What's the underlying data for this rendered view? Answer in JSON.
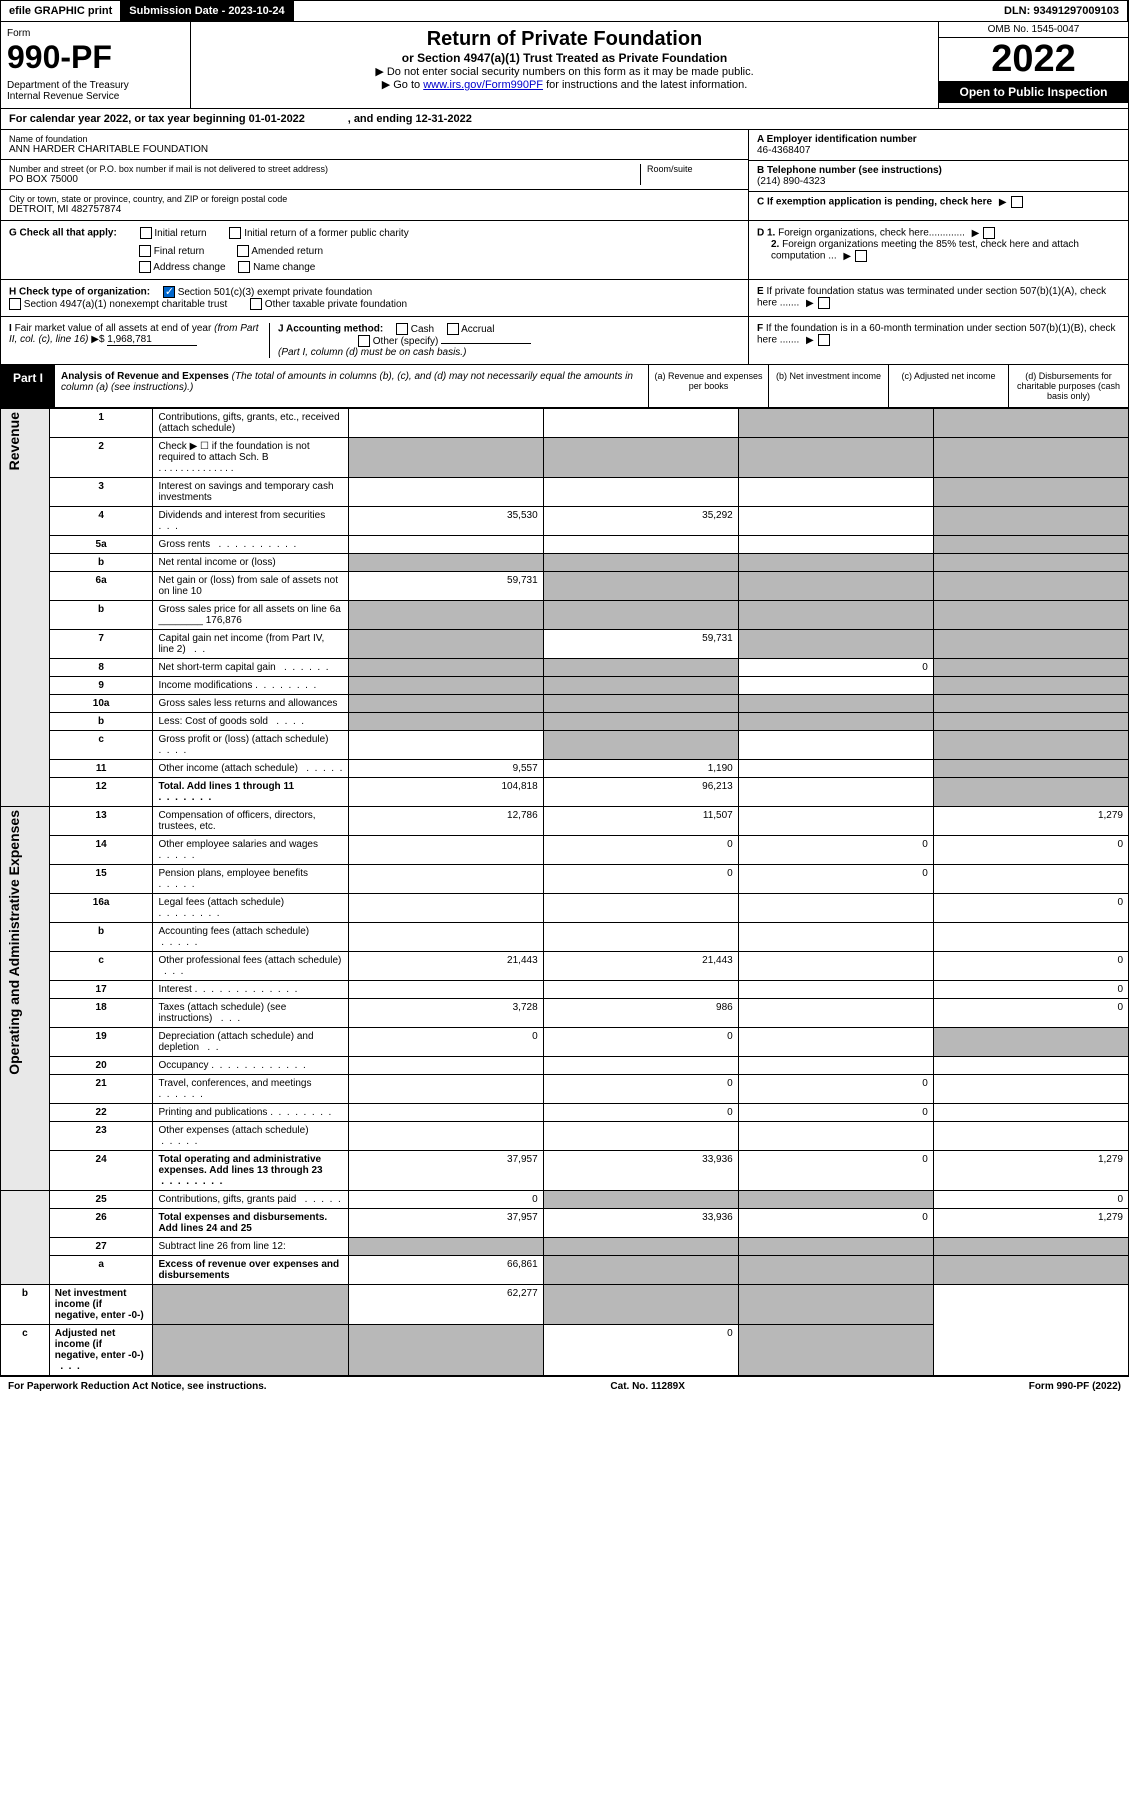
{
  "topbar": {
    "efile": "efile GRAPHIC print",
    "subdate_label": "Submission Date - 2023-10-24",
    "dln": "DLN: 93491297009103"
  },
  "header": {
    "form_label": "Form",
    "form_num": "990-PF",
    "dept": "Department of the Treasury",
    "irs": "Internal Revenue Service",
    "title": "Return of Private Foundation",
    "subtitle": "or Section 4947(a)(1) Trust Treated as Private Foundation",
    "note1": "▶ Do not enter social security numbers on this form as it may be made public.",
    "note2_pre": "▶ Go to ",
    "note2_link": "www.irs.gov/Form990PF",
    "note2_post": " for instructions and the latest information.",
    "omb": "OMB No. 1545-0047",
    "year": "2022",
    "open": "Open to Public Inspection"
  },
  "calyear": "For calendar year 2022, or tax year beginning 01-01-2022              , and ending 12-31-2022",
  "info": {
    "name_label": "Name of foundation",
    "name": "ANN HARDER CHARITABLE FOUNDATION",
    "addr_label": "Number and street (or P.O. box number if mail is not delivered to street address)",
    "addr": "PO BOX 75000",
    "room_label": "Room/suite",
    "city_label": "City or town, state or province, country, and ZIP or foreign postal code",
    "city": "DETROIT, MI  482757874",
    "a_label": "A Employer identification number",
    "a_val": "46-4368407",
    "b_label": "B Telephone number (see instructions)",
    "b_val": "(214) 890-4323",
    "c_label": "C If exemption application is pending, check here",
    "d1": "D 1. Foreign organizations, check here.............",
    "d2": "2. Foreign organizations meeting the 85% test, check here and attach computation ...",
    "e_label": "E If private foundation status was terminated under section 507(b)(1)(A), check here .......",
    "f_label": "F If the foundation is in a 60-month termination under section 507(b)(1)(B), check here .......",
    "g_label": "G Check all that apply:",
    "g_opts": [
      "Initial return",
      "Initial return of a former public charity",
      "Final return",
      "Amended return",
      "Address change",
      "Name change"
    ],
    "h_label": "H Check type of organization:",
    "h_opts": [
      "Section 501(c)(3) exempt private foundation",
      "Section 4947(a)(1) nonexempt charitable trust",
      "Other taxable private foundation"
    ],
    "i_label": "I Fair market value of all assets at end of year (from Part II, col. (c), line 16) ▶$ ",
    "i_val": "1,968,781",
    "j_label": "J Accounting method:",
    "j_cash": "Cash",
    "j_accrual": "Accrual",
    "j_other": "Other (specify)",
    "j_note": "(Part I, column (d) must be on cash basis.)"
  },
  "part1": {
    "badge": "Part I",
    "title": "Analysis of Revenue and Expenses",
    "title_note": " (The total of amounts in columns (b), (c), and (d) may not necessarily equal the amounts in column (a) (see instructions).)",
    "col_a": "(a) Revenue and expenses per books",
    "col_b": "(b) Net investment income",
    "col_c": "(c) Adjusted net income",
    "col_d": "(d) Disbursements for charitable purposes (cash basis only)"
  },
  "rows": [
    {
      "n": "1",
      "d": "Contributions, gifts, grants, etc., received (attach schedule)",
      "a": "",
      "b": "",
      "c": "s",
      "ds": "s"
    },
    {
      "n": "2",
      "d": "Check ▶ ☐ if the foundation is not required to attach Sch. B   . . . . . . . . . . . . . .",
      "a": "s",
      "b": "s",
      "c": "s",
      "ds": "s"
    },
    {
      "n": "3",
      "d": "Interest on savings and temporary cash investments",
      "a": "",
      "b": "",
      "c": "",
      "ds": "s"
    },
    {
      "n": "4",
      "d": "Dividends and interest from securities   .  .  .",
      "a": "35,530",
      "b": "35,292",
      "c": "",
      "ds": "s"
    },
    {
      "n": "5a",
      "d": "Gross rents   .  .  .  .  .  .  .  .  .  .",
      "a": "",
      "b": "",
      "c": "",
      "ds": "s"
    },
    {
      "n": "b",
      "d": "Net rental income or (loss)",
      "a": "s",
      "b": "s",
      "c": "s",
      "ds": "s"
    },
    {
      "n": "6a",
      "d": "Net gain or (loss) from sale of assets not on line 10",
      "a": "59,731",
      "b": "s",
      "c": "s",
      "ds": "s"
    },
    {
      "n": "b",
      "d": "Gross sales price for all assets on line 6a ________ 176,876",
      "a": "s",
      "b": "s",
      "c": "s",
      "ds": "s"
    },
    {
      "n": "7",
      "d": "Capital gain net income (from Part IV, line 2)   .  .",
      "a": "s",
      "b": "59,731",
      "c": "s",
      "ds": "s"
    },
    {
      "n": "8",
      "d": "Net short-term capital gain   .  .  .  .  .  .",
      "a": "s",
      "b": "s",
      "c": "0",
      "ds": "s"
    },
    {
      "n": "9",
      "d": "Income modifications .  .  .  .  .  .  .  .",
      "a": "s",
      "b": "s",
      "c": "",
      "ds": "s"
    },
    {
      "n": "10a",
      "d": "Gross sales less returns and allowances",
      "a": "s",
      "b": "s",
      "c": "s",
      "ds": "s"
    },
    {
      "n": "b",
      "d": "Less: Cost of goods sold   .  .  .  .",
      "a": "s",
      "b": "s",
      "c": "s",
      "ds": "s"
    },
    {
      "n": "c",
      "d": "Gross profit or (loss) (attach schedule)   .  .  .  .",
      "a": "",
      "b": "s",
      "c": "",
      "ds": "s"
    },
    {
      "n": "11",
      "d": "Other income (attach schedule)   .  .  .  .  .",
      "a": "9,557",
      "b": "1,190",
      "c": "",
      "ds": "s"
    },
    {
      "n": "12",
      "d": "Total. Add lines 1 through 11   .  .  .  .  .  .  .",
      "a": "104,818",
      "b": "96,213",
      "c": "",
      "ds": "s",
      "bold": true
    },
    {
      "n": "13",
      "d": "Compensation of officers, directors, trustees, etc.",
      "a": "12,786",
      "b": "11,507",
      "c": "",
      "dv": "1,279"
    },
    {
      "n": "14",
      "d": "Other employee salaries and wages   .  .  .  .  .",
      "a": "",
      "b": "0",
      "c": "0",
      "dv": "0"
    },
    {
      "n": "15",
      "d": "Pension plans, employee benefits   .  .  .  .  .",
      "a": "",
      "b": "0",
      "c": "0",
      "dv": ""
    },
    {
      "n": "16a",
      "d": "Legal fees (attach schedule) .  .  .  .  .  .  .  .",
      "a": "",
      "b": "",
      "c": "",
      "dv": "0"
    },
    {
      "n": "b",
      "d": "Accounting fees (attach schedule)  .  .  .  .  .",
      "a": "",
      "b": "",
      "c": "",
      "dv": ""
    },
    {
      "n": "c",
      "d": "Other professional fees (attach schedule)   .  .  .",
      "a": "21,443",
      "b": "21,443",
      "c": "",
      "dv": "0"
    },
    {
      "n": "17",
      "d": "Interest .  .  .  .  .  .  .  .  .  .  .  .  .",
      "a": "",
      "b": "",
      "c": "",
      "dv": "0"
    },
    {
      "n": "18",
      "d": "Taxes (attach schedule) (see instructions)   .  .  .",
      "a": "3,728",
      "b": "986",
      "c": "",
      "dv": "0"
    },
    {
      "n": "19",
      "d": "Depreciation (attach schedule) and depletion   .  .",
      "a": "0",
      "b": "0",
      "c": "",
      "ds": "s"
    },
    {
      "n": "20",
      "d": "Occupancy .  .  .  .  .  .  .  .  .  .  .  .",
      "a": "",
      "b": "",
      "c": "",
      "dv": ""
    },
    {
      "n": "21",
      "d": "Travel, conferences, and meetings .  .  .  .  .  .",
      "a": "",
      "b": "0",
      "c": "0",
      "dv": ""
    },
    {
      "n": "22",
      "d": "Printing and publications .  .  .  .  .  .  .  .",
      "a": "",
      "b": "0",
      "c": "0",
      "dv": ""
    },
    {
      "n": "23",
      "d": "Other expenses (attach schedule)  .  .  .  .  .",
      "a": "",
      "b": "",
      "c": "",
      "dv": ""
    },
    {
      "n": "24",
      "d": "Total operating and administrative expenses. Add lines 13 through 23  .  .  .  .  .  .  .  .",
      "a": "37,957",
      "b": "33,936",
      "c": "0",
      "dv": "1,279",
      "bold": true
    },
    {
      "n": "25",
      "d": "Contributions, gifts, grants paid   .  .  .  .  .",
      "a": "0",
      "b": "s",
      "c": "s",
      "dv": "0"
    },
    {
      "n": "26",
      "d": "Total expenses and disbursements. Add lines 24 and 25",
      "a": "37,957",
      "b": "33,936",
      "c": "0",
      "dv": "1,279",
      "bold": true
    },
    {
      "n": "27",
      "d": "Subtract line 26 from line 12:",
      "a": "s",
      "b": "s",
      "c": "s",
      "ds": "s"
    },
    {
      "n": "a",
      "d": "Excess of revenue over expenses and disbursements",
      "a": "66,861",
      "b": "s",
      "c": "s",
      "ds": "s",
      "bold": true
    },
    {
      "n": "b",
      "d": "Net investment income (if negative, enter -0-)",
      "a": "s",
      "b": "62,277",
      "c": "s",
      "ds": "s",
      "bold": true
    },
    {
      "n": "c",
      "d": "Adjusted net income (if negative, enter -0-)   .  .  .",
      "a": "s",
      "b": "s",
      "c": "0",
      "ds": "s",
      "bold": true
    }
  ],
  "vlabels": {
    "rev": "Revenue",
    "exp": "Operating and Administrative Expenses"
  },
  "footer": {
    "left": "For Paperwork Reduction Act Notice, see instructions.",
    "mid": "Cat. No. 11289X",
    "right": "Form 990-PF (2022)"
  }
}
